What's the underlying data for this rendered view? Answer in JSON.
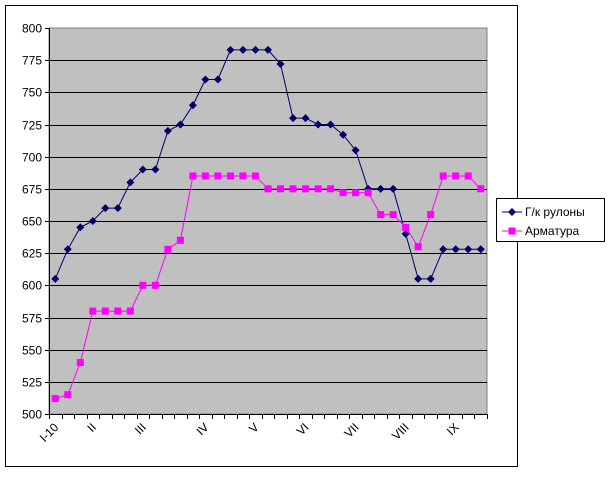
{
  "chart_data": {
    "type": "line",
    "title": "",
    "xlabel": "",
    "ylabel": "",
    "ylim": [
      500,
      800
    ],
    "yticks": [
      500,
      525,
      550,
      575,
      600,
      625,
      650,
      675,
      700,
      725,
      750,
      775,
      800
    ],
    "grid": true,
    "plot_background": "#c0c0c0",
    "legend_position": "right",
    "categories": [
      "I-10",
      "",
      "",
      "II",
      "",
      "",
      "",
      "III",
      "",
      "",
      "",
      "",
      "IV",
      "",
      "",
      "",
      "V",
      "",
      "",
      "",
      "VI",
      "",
      "",
      "",
      "VII",
      "",
      "",
      "",
      "VIII",
      "",
      "",
      "",
      "IX",
      "",
      ""
    ],
    "series": [
      {
        "name": "Г/к рулоны",
        "color": "#000066",
        "marker": "diamond",
        "values": [
          605,
          628,
          645,
          650,
          660,
          660,
          680,
          690,
          690,
          720,
          725,
          740,
          760,
          760,
          783,
          783,
          783,
          783,
          772,
          730,
          730,
          725,
          725,
          717,
          705,
          675,
          675,
          675,
          640,
          605,
          605,
          628,
          628,
          628,
          628
        ]
      },
      {
        "name": "Арматура",
        "color": "#ff00ff",
        "marker": "square",
        "values": [
          512,
          515,
          540,
          580,
          580,
          580,
          580,
          600,
          600,
          628,
          635,
          685,
          685,
          685,
          685,
          685,
          685,
          675,
          675,
          675,
          675,
          675,
          675,
          672,
          672,
          672,
          655,
          655,
          645,
          630,
          655,
          685,
          685,
          685,
          675
        ]
      }
    ]
  }
}
